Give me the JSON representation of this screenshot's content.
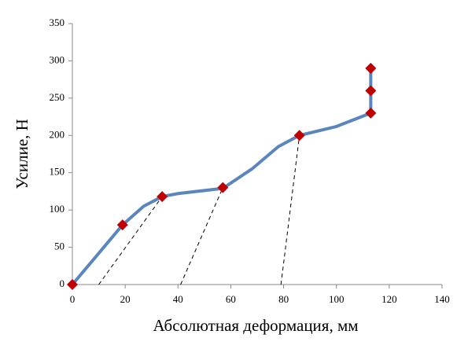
{
  "chart_data": {
    "type": "line",
    "x_label": "Абсолютная деформация, мм",
    "y_label": "Усилие, Н",
    "xlim": [
      0,
      140
    ],
    "xticks": [
      0,
      20,
      40,
      60,
      80,
      100,
      120,
      140
    ],
    "ylim": [
      0,
      350
    ],
    "yticks": [
      0,
      50,
      100,
      150,
      200,
      250,
      300,
      350
    ],
    "grid": false,
    "series": [
      {
        "style": "line",
        "color": "#5a86bd",
        "x": [
          0,
          10,
          19,
          27,
          34,
          40,
          57,
          68,
          78,
          86,
          100,
          113,
          113,
          113
        ],
        "values": [
          0,
          42,
          80,
          105,
          118,
          122,
          129,
          155,
          185,
          200,
          212,
          230,
          260,
          290
        ]
      },
      {
        "style": "markers",
        "color": "#c00000",
        "x": [
          0,
          19,
          34,
          57,
          86,
          113,
          113,
          113
        ],
        "values": [
          0,
          80,
          118,
          130,
          200,
          230,
          260,
          290
        ]
      },
      {
        "style": "dashed",
        "color": "#000000",
        "x": [
          10,
          34
        ],
        "values": [
          0,
          118
        ]
      },
      {
        "style": "dashed",
        "color": "#000000",
        "x": [
          41,
          57
        ],
        "values": [
          0,
          130
        ]
      },
      {
        "style": "dashed",
        "color": "#000000",
        "x": [
          79,
          86
        ],
        "values": [
          0,
          200
        ]
      }
    ]
  }
}
